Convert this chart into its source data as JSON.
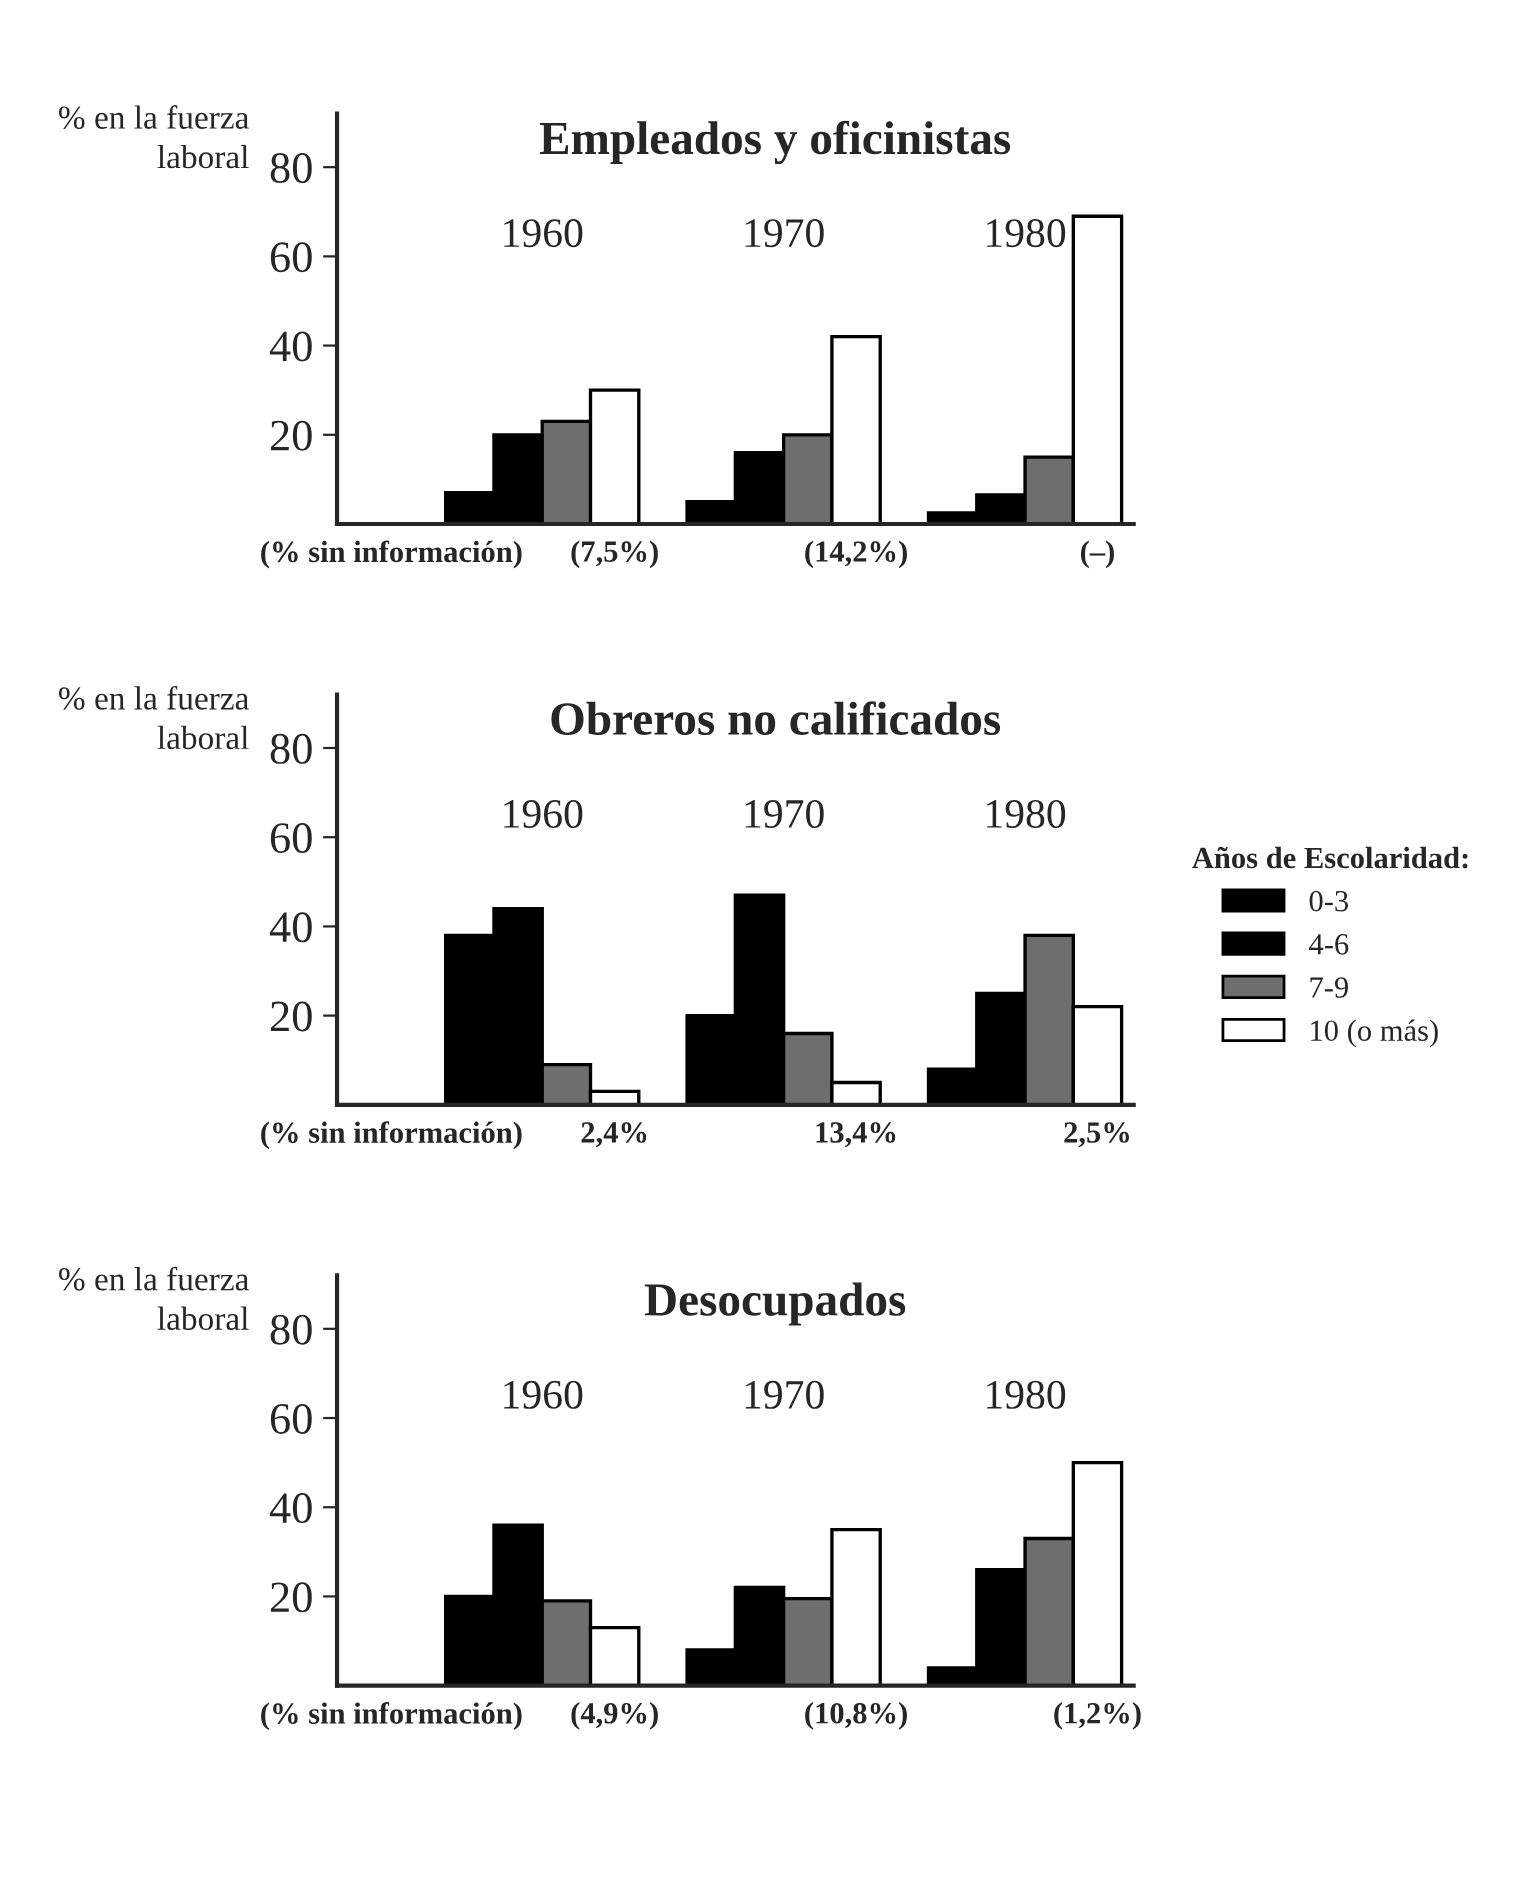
{
  "chart_data": [
    {
      "type": "bar",
      "title": "Empleados y oficinistas",
      "ylabel": "% en la fuerza\nlaboral",
      "categories": [
        "1960",
        "1970",
        "1980"
      ],
      "series": [
        {
          "name": "0-3",
          "color": "#000000",
          "values": [
            7,
            5,
            2.5
          ]
        },
        {
          "name": "4-6",
          "color": "#000000",
          "values": [
            20,
            16,
            6.5
          ]
        },
        {
          "name": "7-9",
          "color": "#6e6e6e",
          "values": [
            23,
            20,
            15
          ]
        },
        {
          "name": "10 (o más)",
          "color": "#ffffff",
          "values": [
            30,
            42,
            69
          ]
        }
      ],
      "ylim": [
        0,
        92
      ],
      "yticks": [
        20,
        40,
        60,
        80
      ],
      "tick_labels": "y",
      "grid": false,
      "legend": "right",
      "legend_title": "Años de Escolaridad:",
      "annotations": [
        "(% sin información)",
        "(7,5%)",
        "(14,2%)",
        "(–)"
      ]
    },
    {
      "type": "bar",
      "title": "Obreros no calificados",
      "ylabel": "% en la fuerza\nlaboral",
      "categories": [
        "1960",
        "1970",
        "1980"
      ],
      "series": [
        {
          "color": "#000000",
          "values": [
            38,
            20,
            8
          ]
        },
        {
          "color": "#000000",
          "values": [
            44,
            47,
            25
          ]
        },
        {
          "color": "#6e6e6e",
          "values": [
            9,
            16,
            38
          ]
        },
        {
          "color": "#ffffff",
          "values": [
            3,
            5,
            22
          ]
        }
      ],
      "ylim": [
        0,
        92
      ],
      "yticks": [
        20,
        40,
        60,
        80
      ],
      "tick_labels": "y",
      "grid": false,
      "annotations": [
        "(% sin información)",
        "2,4%",
        "13,4%",
        "2,5%"
      ]
    },
    {
      "type": "bar",
      "title": "Desocupados",
      "ylabel": "% en la fuerza\nlaboral",
      "categories": [
        "1960",
        "1970",
        "1980"
      ],
      "series": [
        {
          "color": "#000000",
          "values": [
            20,
            8,
            4
          ]
        },
        {
          "color": "#000000",
          "values": [
            36,
            22,
            26
          ]
        },
        {
          "color": "#6e6e6e",
          "values": [
            19,
            19.5,
            33
          ]
        },
        {
          "color": "#ffffff",
          "values": [
            13,
            35,
            50
          ]
        }
      ],
      "ylim": [
        0,
        92
      ],
      "yticks": [
        20,
        40,
        60,
        80
      ],
      "tick_labels": "y",
      "grid": false,
      "annotations": [
        "(% sin información)",
        "(4,9%)",
        "(10,8%)",
        "(1,2%)"
      ]
    }
  ]
}
